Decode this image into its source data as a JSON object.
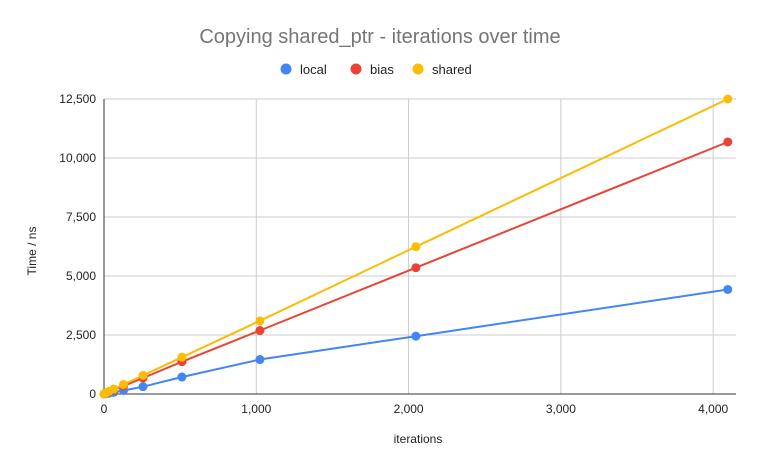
{
  "chart_data": {
    "type": "scatter",
    "title": "Copying shared_ptr - iterations over time",
    "xlabel": "iterations",
    "ylabel": "Time / ns",
    "xlim": [
      0,
      4150
    ],
    "ylim": [
      0,
      12500
    ],
    "x_ticks": [
      0,
      1000,
      2000,
      3000,
      4000
    ],
    "x_tick_labels": [
      "0",
      "1,000",
      "2,000",
      "3,000",
      "4,000"
    ],
    "y_ticks": [
      0,
      2500,
      5000,
      7500,
      10000,
      12500
    ],
    "y_tick_labels": [
      "0",
      "2,500",
      "5,000",
      "7,500",
      "10,000",
      "12,500"
    ],
    "grid": true,
    "legend_position": "top",
    "series": [
      {
        "name": "local",
        "color": "#4285f4",
        "points": [
          [
            1,
            3
          ],
          [
            2,
            5
          ],
          [
            4,
            8
          ],
          [
            8,
            12
          ],
          [
            16,
            20
          ],
          [
            32,
            35
          ],
          [
            64,
            70
          ],
          [
            128,
            150
          ],
          [
            256,
            310
          ],
          [
            512,
            720
          ],
          [
            1024,
            1460
          ],
          [
            2048,
            2450
          ],
          [
            4096,
            4430
          ]
        ]
      },
      {
        "name": "bias",
        "color": "#ea4335",
        "points": [
          [
            1,
            5
          ],
          [
            2,
            10
          ],
          [
            4,
            18
          ],
          [
            8,
            30
          ],
          [
            16,
            50
          ],
          [
            32,
            90
          ],
          [
            64,
            170
          ],
          [
            128,
            340
          ],
          [
            256,
            680
          ],
          [
            512,
            1370
          ],
          [
            1024,
            2690
          ],
          [
            2048,
            5350
          ],
          [
            4096,
            10680
          ]
        ]
      },
      {
        "name": "shared",
        "color": "#fbbc04",
        "points": [
          [
            1,
            6
          ],
          [
            2,
            12
          ],
          [
            4,
            20
          ],
          [
            8,
            35
          ],
          [
            16,
            60
          ],
          [
            32,
            110
          ],
          [
            64,
            210
          ],
          [
            128,
            400
          ],
          [
            256,
            790
          ],
          [
            512,
            1560
          ],
          [
            1024,
            3100
          ],
          [
            2048,
            6240
          ],
          [
            4096,
            12500
          ]
        ]
      }
    ]
  }
}
